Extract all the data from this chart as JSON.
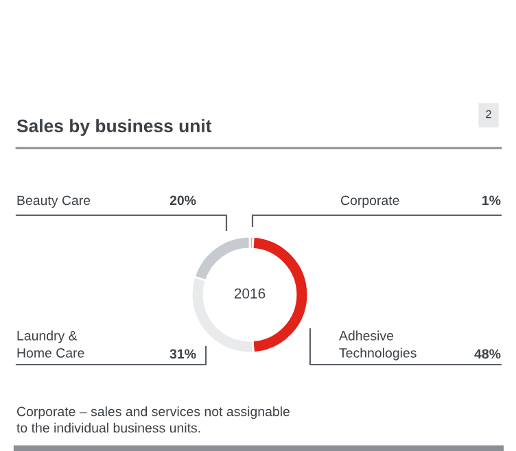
{
  "chart_data": {
    "type": "donut",
    "title": "Sales by business unit",
    "categories": [
      "Corporate",
      "Adhesive Technologies",
      "Laundry & Home Care",
      "Beauty Care"
    ],
    "values": [
      1,
      48,
      31,
      20
    ],
    "value_labels": [
      "1%",
      "48%",
      "31%",
      "20%"
    ],
    "colors": [
      "#b4b9be",
      "#e2231a",
      "#e9eaeb",
      "#c7cbcf"
    ],
    "annotations": [
      "2",
      "2016",
      "Corporate – sales and services not assignable\nto the individual business units."
    ]
  }
}
